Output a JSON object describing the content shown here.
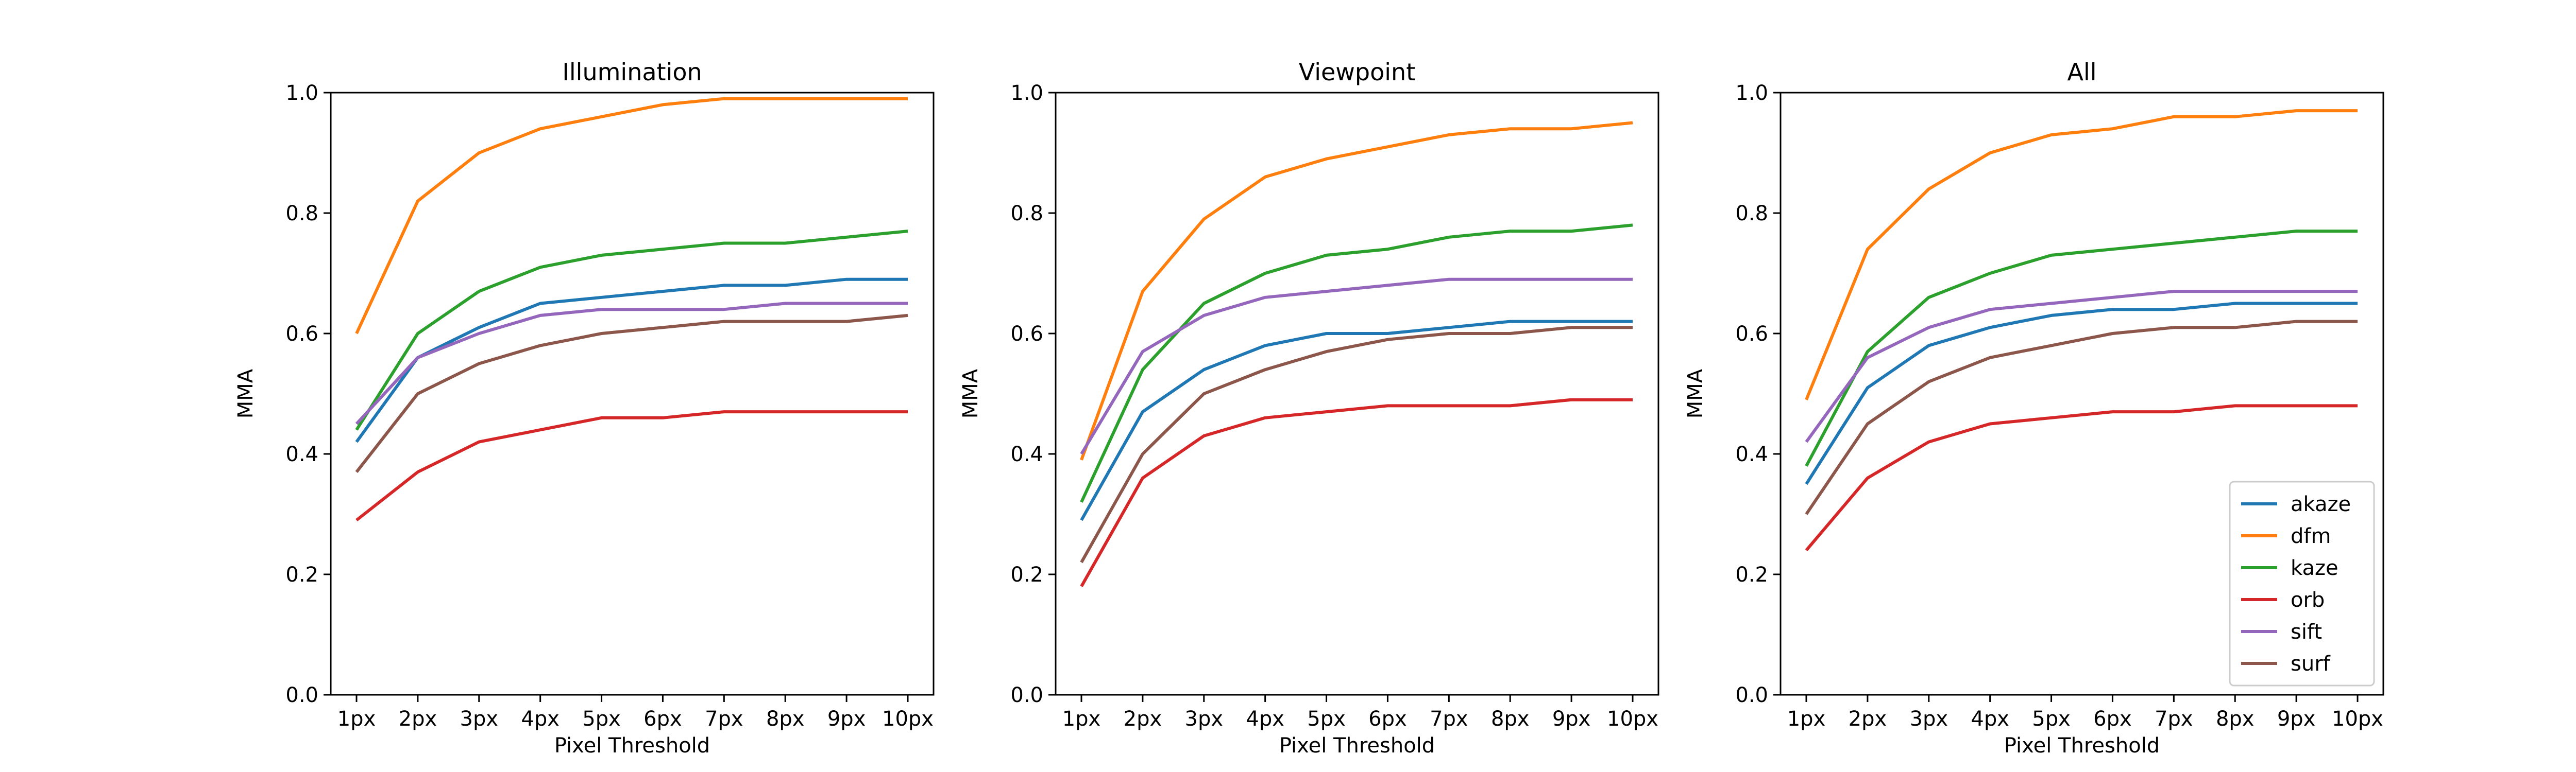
{
  "chart_data": [
    {
      "type": "line",
      "title": "Illumination",
      "xlabel": "Pixel Threshold",
      "ylabel": "MMA",
      "categories": [
        "1px",
        "2px",
        "3px",
        "4px",
        "5px",
        "6px",
        "7px",
        "8px",
        "9px",
        "10px"
      ],
      "ylim": [
        0,
        1
      ],
      "yticks": [
        "0.0",
        "0.2",
        "0.4",
        "0.6",
        "0.8",
        "1.0"
      ],
      "grid": false,
      "series": [
        {
          "name": "akaze",
          "color": "#1f77b4",
          "values": [
            0.42,
            0.56,
            0.61,
            0.65,
            0.66,
            0.67,
            0.68,
            0.68,
            0.69,
            0.69
          ]
        },
        {
          "name": "dfm",
          "color": "#ff7f0e",
          "values": [
            0.6,
            0.82,
            0.9,
            0.94,
            0.96,
            0.98,
            0.99,
            0.99,
            0.99,
            0.99
          ]
        },
        {
          "name": "kaze",
          "color": "#2ca02c",
          "values": [
            0.44,
            0.6,
            0.67,
            0.71,
            0.73,
            0.74,
            0.75,
            0.75,
            0.76,
            0.77
          ]
        },
        {
          "name": "orb",
          "color": "#d62728",
          "values": [
            0.29,
            0.37,
            0.42,
            0.44,
            0.46,
            0.46,
            0.47,
            0.47,
            0.47,
            0.47
          ]
        },
        {
          "name": "sift",
          "color": "#9467bd",
          "values": [
            0.45,
            0.56,
            0.6,
            0.63,
            0.64,
            0.64,
            0.64,
            0.65,
            0.65,
            0.65
          ]
        },
        {
          "name": "surf",
          "color": "#8c564b",
          "values": [
            0.37,
            0.5,
            0.55,
            0.58,
            0.6,
            0.61,
            0.62,
            0.62,
            0.62,
            0.63
          ]
        }
      ]
    },
    {
      "type": "line",
      "title": "Viewpoint",
      "xlabel": "Pixel Threshold",
      "ylabel": "MMA",
      "categories": [
        "1px",
        "2px",
        "3px",
        "4px",
        "5px",
        "6px",
        "7px",
        "8px",
        "9px",
        "10px"
      ],
      "ylim": [
        0,
        1
      ],
      "yticks": [
        "0.0",
        "0.2",
        "0.4",
        "0.6",
        "0.8",
        "1.0"
      ],
      "grid": false,
      "series": [
        {
          "name": "akaze",
          "color": "#1f77b4",
          "values": [
            0.29,
            0.47,
            0.54,
            0.58,
            0.6,
            0.6,
            0.61,
            0.62,
            0.62,
            0.62
          ]
        },
        {
          "name": "dfm",
          "color": "#ff7f0e",
          "values": [
            0.39,
            0.67,
            0.79,
            0.86,
            0.89,
            0.91,
            0.93,
            0.94,
            0.94,
            0.95
          ]
        },
        {
          "name": "kaze",
          "color": "#2ca02c",
          "values": [
            0.32,
            0.54,
            0.65,
            0.7,
            0.73,
            0.74,
            0.76,
            0.77,
            0.77,
            0.78
          ]
        },
        {
          "name": "orb",
          "color": "#d62728",
          "values": [
            0.18,
            0.36,
            0.43,
            0.46,
            0.47,
            0.48,
            0.48,
            0.48,
            0.49,
            0.49
          ]
        },
        {
          "name": "sift",
          "color": "#9467bd",
          "values": [
            0.4,
            0.57,
            0.63,
            0.66,
            0.67,
            0.68,
            0.69,
            0.69,
            0.69,
            0.69
          ]
        },
        {
          "name": "surf",
          "color": "#8c564b",
          "values": [
            0.22,
            0.4,
            0.5,
            0.54,
            0.57,
            0.59,
            0.6,
            0.6,
            0.61,
            0.61
          ]
        }
      ]
    },
    {
      "type": "line",
      "title": "All",
      "xlabel": "Pixel Threshold",
      "ylabel": "MMA",
      "categories": [
        "1px",
        "2px",
        "3px",
        "4px",
        "5px",
        "6px",
        "7px",
        "8px",
        "9px",
        "10px"
      ],
      "ylim": [
        0,
        1
      ],
      "yticks": [
        "0.0",
        "0.2",
        "0.4",
        "0.6",
        "0.8",
        "1.0"
      ],
      "grid": false,
      "legend": "lower-right",
      "series": [
        {
          "name": "akaze",
          "color": "#1f77b4",
          "values": [
            0.35,
            0.51,
            0.58,
            0.61,
            0.63,
            0.64,
            0.64,
            0.65,
            0.65,
            0.65
          ]
        },
        {
          "name": "dfm",
          "color": "#ff7f0e",
          "values": [
            0.49,
            0.74,
            0.84,
            0.9,
            0.93,
            0.94,
            0.96,
            0.96,
            0.97,
            0.97
          ]
        },
        {
          "name": "kaze",
          "color": "#2ca02c",
          "values": [
            0.38,
            0.57,
            0.66,
            0.7,
            0.73,
            0.74,
            0.75,
            0.76,
            0.77,
            0.77
          ]
        },
        {
          "name": "orb",
          "color": "#d62728",
          "values": [
            0.24,
            0.36,
            0.42,
            0.45,
            0.46,
            0.47,
            0.47,
            0.48,
            0.48,
            0.48
          ]
        },
        {
          "name": "sift",
          "color": "#9467bd",
          "values": [
            0.42,
            0.56,
            0.61,
            0.64,
            0.65,
            0.66,
            0.67,
            0.67,
            0.67,
            0.67
          ]
        },
        {
          "name": "surf",
          "color": "#8c564b",
          "values": [
            0.3,
            0.45,
            0.52,
            0.56,
            0.58,
            0.6,
            0.61,
            0.61,
            0.62,
            0.62
          ]
        }
      ]
    }
  ]
}
